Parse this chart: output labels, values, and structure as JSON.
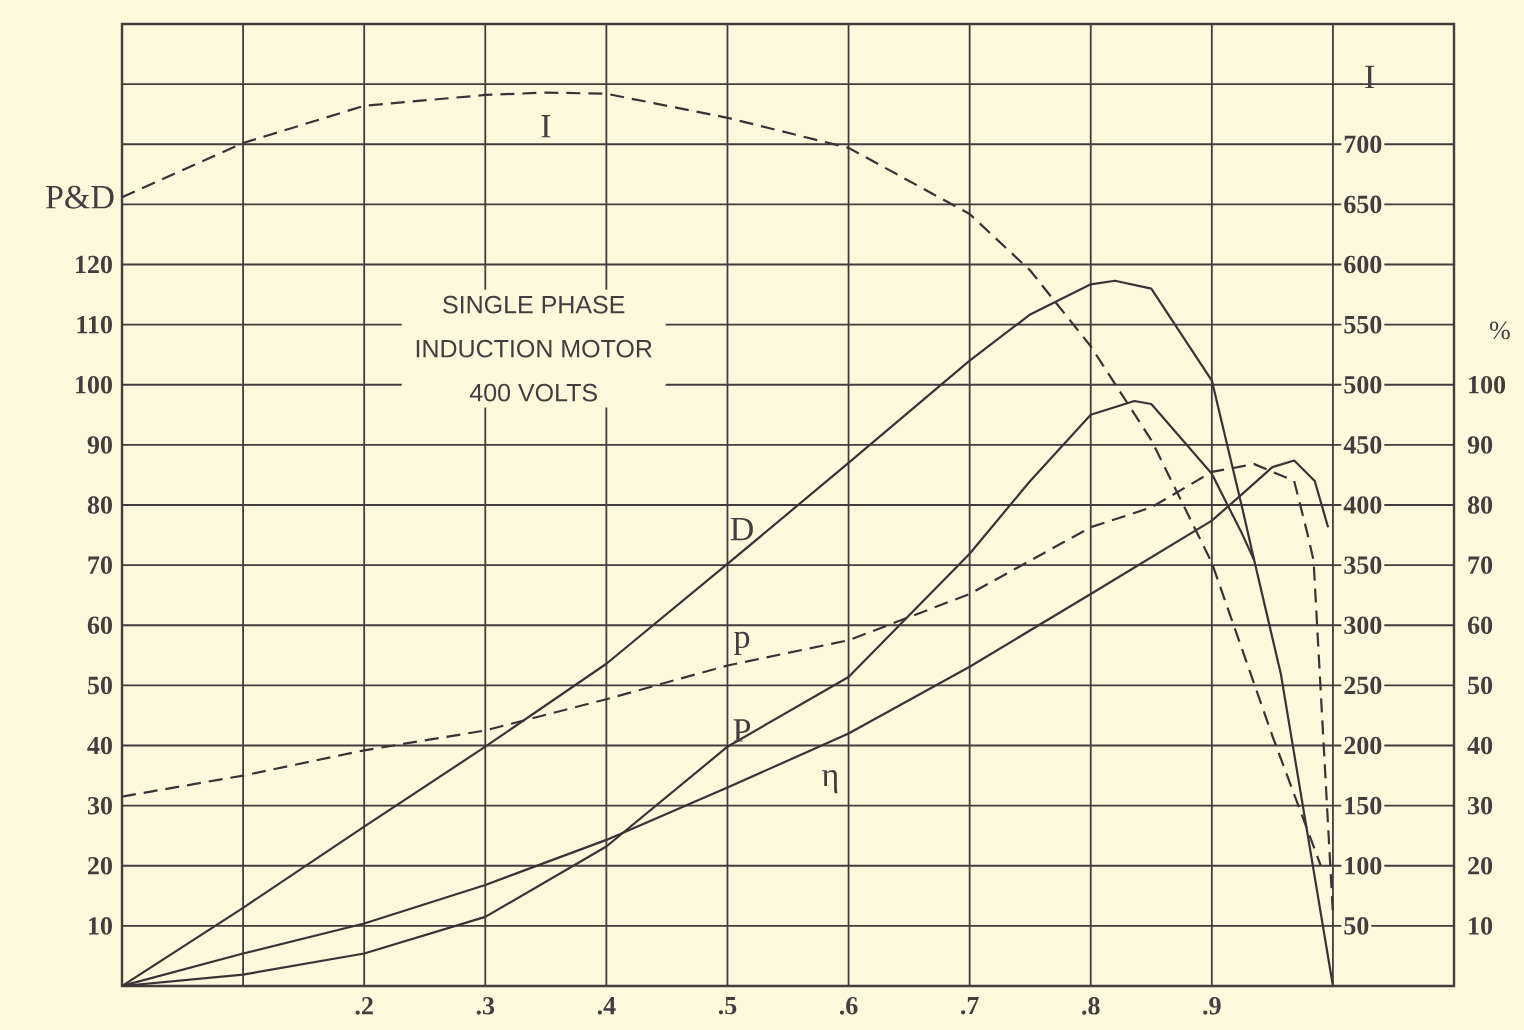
{
  "chart_data": {
    "type": "line",
    "title": "SINGLE PHASE INDUCTION MOTOR 400 VOLTS",
    "ylabel": "P&D",
    "y2label": "I",
    "y3label": "%",
    "xlim": [
      0,
      1.1
    ],
    "xticks": [
      {
        "value": 0.1,
        "label": null
      },
      {
        "value": 0.2,
        "label": ".2"
      },
      {
        "value": 0.3,
        "label": ".3"
      },
      {
        "value": 0.4,
        "label": ".4"
      },
      {
        "value": 0.5,
        "label": ".5"
      },
      {
        "value": 0.6,
        "label": ".6"
      },
      {
        "value": 0.7,
        "label": ".7"
      },
      {
        "value": 0.8,
        "label": ".8"
      },
      {
        "value": 0.9,
        "label": ".9"
      },
      {
        "value": 1.0,
        "label": null
      }
    ],
    "ylim": [
      0,
      160
    ],
    "yticks": [
      10,
      20,
      30,
      40,
      50,
      60,
      70,
      80,
      90,
      100,
      110,
      120,
      {
        "value": 130,
        "label": null
      },
      {
        "value": 140,
        "label": null
      },
      {
        "value": 150,
        "label": null
      }
    ],
    "y2lim": [
      0,
      800
    ],
    "y2ticks": [
      50,
      100,
      150,
      200,
      250,
      300,
      350,
      400,
      450,
      500,
      550,
      600,
      650,
      700
    ],
    "y3lim": [
      0,
      160
    ],
    "y3ticks": [
      10,
      20,
      30,
      40,
      50,
      60,
      70,
      80,
      90,
      100
    ],
    "grid": true,
    "marker": "none",
    "series": [
      {
        "name": "I",
        "color": "#3b3333",
        "axis": "y2",
        "line_style": "dashed",
        "x": [
          0,
          0.1,
          0.2,
          0.3,
          0.35,
          0.4,
          0.5,
          0.6,
          0.7,
          0.75,
          0.8,
          0.85,
          0.9,
          0.95,
          0.99
        ],
        "values": [
          656,
          701,
          732,
          741,
          743,
          742,
          722,
          697,
          642,
          595,
          532,
          454,
          352,
          208,
          100
        ]
      },
      {
        "name": "D",
        "color": "#3b3333",
        "line_style": "solid",
        "x": [
          0,
          0.1,
          0.2,
          0.3,
          0.4,
          0.5,
          0.6,
          0.7,
          0.75,
          0.8,
          0.82,
          0.85,
          0.9,
          0.925,
          0.935,
          0.957,
          1.0
        ],
        "values": [
          0,
          13,
          26.5,
          39.8,
          53.6,
          70.2,
          87,
          104,
          111.7,
          116.7,
          117.3,
          116,
          100.7,
          79.6,
          70.8,
          51.9,
          0
        ]
      },
      {
        "name": "p",
        "color": "#3b3333",
        "axis": "y3",
        "line_style": "dashed",
        "x": [
          0,
          0.1,
          0.2,
          0.3,
          0.4,
          0.5,
          0.6,
          0.7,
          0.8,
          0.85,
          0.9,
          0.935,
          0.968,
          0.979,
          0.984,
          1.0
        ],
        "values": [
          31.5,
          35,
          39.2,
          42.5,
          47.7,
          53.3,
          57.5,
          65.2,
          76.3,
          79.6,
          85.5,
          86.8,
          84,
          75.2,
          70.8,
          12
        ]
      },
      {
        "name": "P",
        "color": "#3b3333",
        "line_style": "solid",
        "x": [
          0,
          0.1,
          0.2,
          0.3,
          0.4,
          0.5,
          0.6,
          0.7,
          0.75,
          0.8,
          0.836,
          0.85,
          0.9,
          0.925,
          0.935
        ],
        "values": [
          0,
          1.9,
          5.4,
          11.5,
          23.2,
          39.8,
          51.4,
          71.9,
          84,
          95,
          97.3,
          96.8,
          85.2,
          75.2,
          70.8
        ]
      },
      {
        "name": "η",
        "color": "#3b3333",
        "axis": "y3",
        "line_style": "solid",
        "x": [
          0,
          0.1,
          0.2,
          0.3,
          0.4,
          0.5,
          0.6,
          0.7,
          0.8,
          0.9,
          0.925,
          0.95,
          0.968,
          0.985,
          0.996
        ],
        "values": [
          0,
          5.4,
          10.4,
          16.8,
          24.3,
          33,
          42,
          53.1,
          65.2,
          77.4,
          81.8,
          86.3,
          87.4,
          84,
          76.3
        ]
      }
    ]
  }
}
